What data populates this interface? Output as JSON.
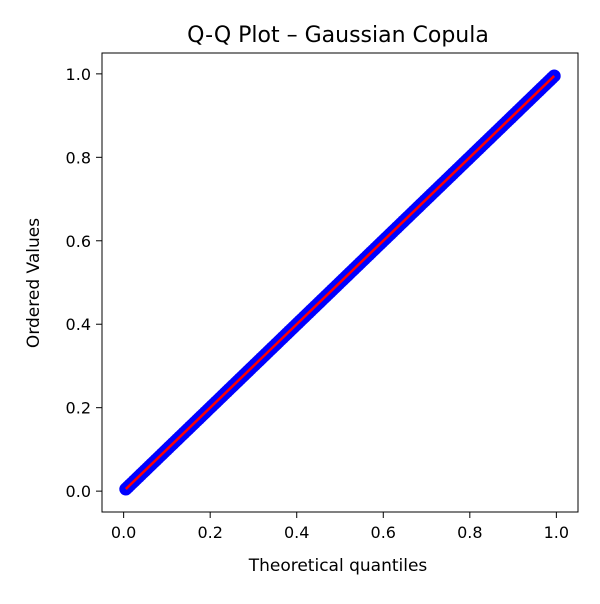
{
  "chart_data": {
    "type": "scatter",
    "title": "Q-Q Plot – Gaussian Copula",
    "xlabel": "Theoretical quantiles",
    "ylabel": "Ordered Values",
    "xlim": [
      -0.05,
      1.05
    ],
    "ylim": [
      -0.05,
      1.05
    ],
    "xticks": [
      0.0,
      0.2,
      0.4,
      0.6,
      0.8,
      1.0
    ],
    "xtick_labels": [
      "0.0",
      "0.2",
      "0.4",
      "0.6",
      "0.8",
      "1.0"
    ],
    "yticks": [
      0.0,
      0.2,
      0.4,
      0.6,
      0.8,
      1.0
    ],
    "ytick_labels": [
      "0.0",
      "0.2",
      "0.4",
      "0.6",
      "0.8",
      "1.0"
    ],
    "grid": false,
    "series": [
      {
        "kind": "points",
        "color": "#0000ff",
        "x_range": [
          0.005,
          0.995
        ],
        "y_range": [
          0.005,
          0.995
        ],
        "count": 200
      },
      {
        "kind": "fit-line",
        "color": "#ff0000",
        "x": [
          0.005,
          0.995
        ],
        "y": [
          0.005,
          0.995
        ]
      }
    ]
  }
}
